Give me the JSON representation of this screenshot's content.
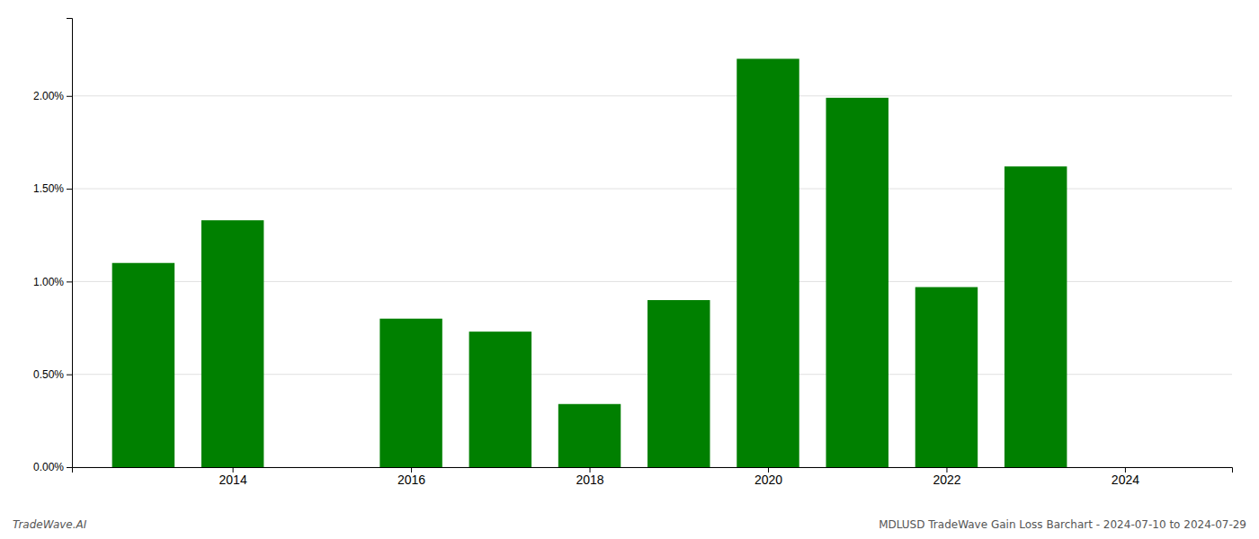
{
  "chart_data": {
    "type": "bar",
    "x": [
      2013,
      2014,
      2016,
      2017,
      2018,
      2019,
      2020,
      2021,
      2022,
      2023
    ],
    "values": [
      1.1,
      1.33,
      0.8,
      0.73,
      0.34,
      0.9,
      2.2,
      1.99,
      0.97,
      1.62
    ],
    "color": "#008000",
    "xlim": [
      2012.2,
      2025.2
    ],
    "xticks": [
      2014,
      2016,
      2018,
      2020,
      2022,
      2024
    ],
    "ylim": [
      0,
      2.42
    ],
    "yticks": [
      {
        "value": 0.0,
        "label": "0.00%"
      },
      {
        "value": 0.5,
        "label": "0.50%"
      },
      {
        "value": 1.0,
        "label": "1.00%"
      },
      {
        "value": 1.5,
        "label": "1.50%"
      },
      {
        "value": 2.0,
        "label": "2.00%"
      }
    ],
    "grid": true,
    "annotations": [
      "TradeWave.AI",
      "MDLUSD TradeWave Gain Loss Barchart - 2024-07-10 to 2024-07-29"
    ]
  }
}
